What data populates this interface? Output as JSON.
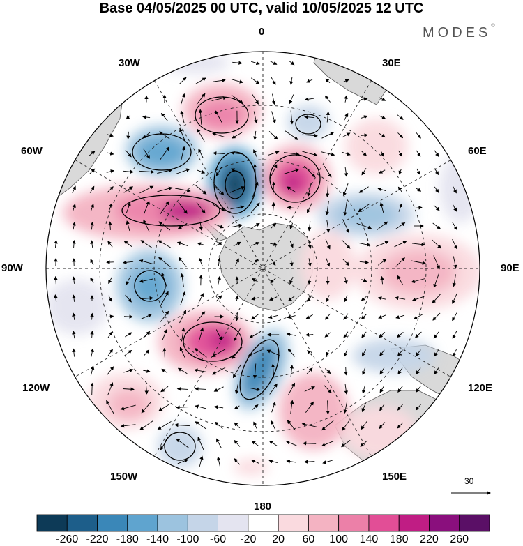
{
  "title": "Base 04/05/2025 00 UTC, valid 10/05/2025 12 UTC",
  "brand": "MODES",
  "brand_mark": "©",
  "longitude_labels": {
    "deg0": "0",
    "deg30e": "30E",
    "deg60e": "60E",
    "deg90e": "90E",
    "deg120e": "120E",
    "deg150e": "150E",
    "deg180": "180",
    "deg150w": "150W",
    "deg120w": "120W",
    "deg90w": "90W",
    "deg60w": "60W",
    "deg30w": "30W"
  },
  "reference_vector": {
    "label": "30"
  },
  "colorbar": {
    "labels": [
      "-260",
      "-220",
      "-180",
      "-140",
      "-100",
      "-60",
      "-20",
      "20",
      "60",
      "100",
      "140",
      "180",
      "220",
      "260"
    ],
    "colors": [
      "#0d3a57",
      "#1d5e8a",
      "#3a87b8",
      "#5fa4cf",
      "#9cc3df",
      "#c5d5e8",
      "#e4e4f0",
      "#ffffff",
      "#fadadf",
      "#f4b3c2",
      "#ec80a8",
      "#e24e96",
      "#c01d84",
      "#8a0f7d",
      "#5a0f66"
    ]
  },
  "colors": {
    "land": "#d9d9d9",
    "coast": "#555555",
    "grid": "#222222"
  }
}
